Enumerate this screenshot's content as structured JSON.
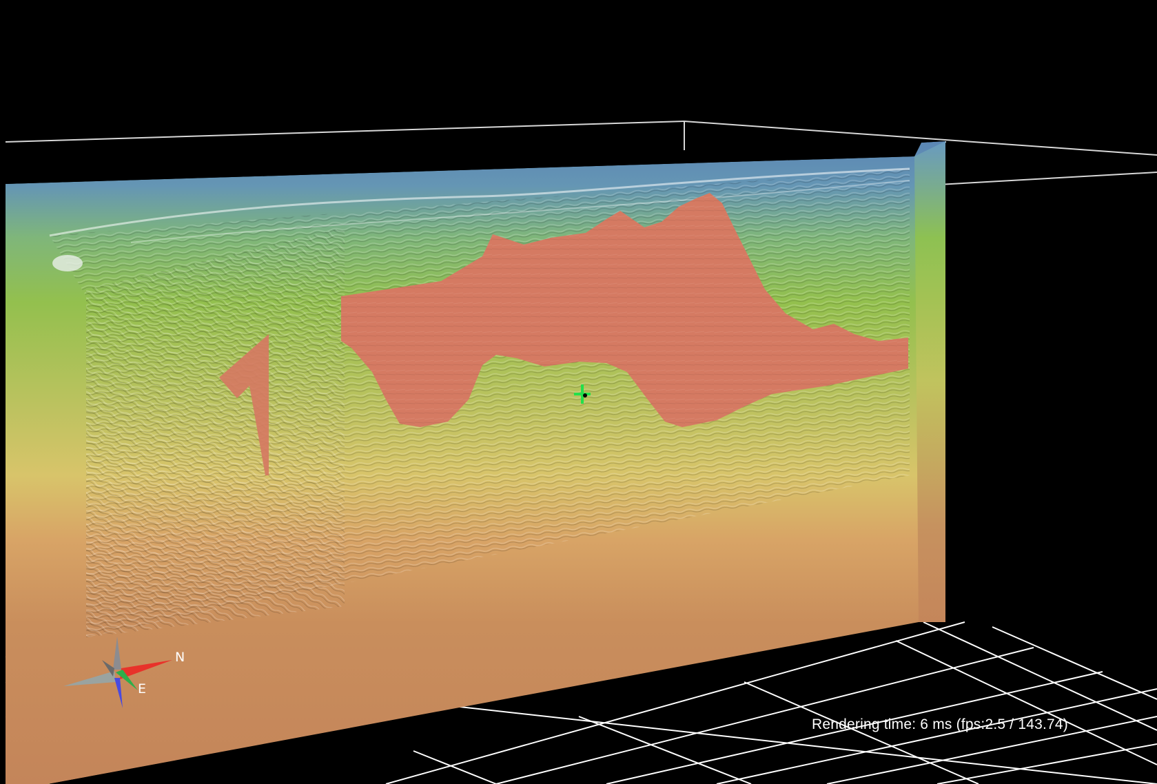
{
  "viewer": {
    "status_text": "Rendering time: 6 ms (fps:2.5 / 143.74)",
    "background_color": "#000000"
  },
  "compass": {
    "north_label": "N",
    "east_label": "E",
    "icon": "compass-icon",
    "colors": {
      "north": "#e8322a",
      "east": "#2fae4a",
      "west": "#9aa3a0",
      "south": "#4a4adf",
      "up": "#8c8c90"
    }
  },
  "cursor": {
    "icon": "crosshair-icon",
    "color": "#22e04a"
  },
  "seismic_section": {
    "icon": "seismic-slice",
    "colors": {
      "top_blue": "#5b86b4",
      "green": "#8ec052",
      "yellow": "#d7c86a",
      "orange": "#c4855a",
      "salt_body": "#d57a62"
    }
  },
  "grid_floor": {
    "line_color": "#ffffff"
  }
}
